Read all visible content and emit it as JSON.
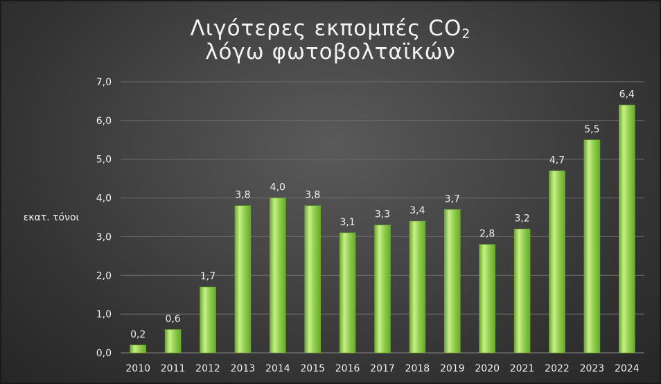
{
  "chart_data": {
    "type": "bar",
    "title": {
      "line1_main": "Λιγότερες εκπομπές CO",
      "line1_sub": "2",
      "line2": "λόγω φωτοβολταϊκών"
    },
    "ylabel": "εκατ. τόνοι",
    "xlabel": "",
    "ylim": [
      0,
      7
    ],
    "y_ticks": [
      0,
      1,
      2,
      3,
      4,
      5,
      6,
      7
    ],
    "y_tick_labels": [
      "0,0",
      "1,0",
      "2,0",
      "3,0",
      "4,0",
      "5,0",
      "6,0",
      "7,0"
    ],
    "grid": true,
    "categories": [
      "2010",
      "2011",
      "2012",
      "2013",
      "2014",
      "2015",
      "2016",
      "2017",
      "2018",
      "2019",
      "2020",
      "2021",
      "2022",
      "2023",
      "2024"
    ],
    "values": [
      0.2,
      0.6,
      1.7,
      3.8,
      4.0,
      3.8,
      3.1,
      3.3,
      3.4,
      3.7,
      2.8,
      3.2,
      4.7,
      5.5,
      6.4
    ],
    "value_labels": [
      "0,2",
      "0,6",
      "1,7",
      "3,8",
      "4,0",
      "3,8",
      "3,1",
      "3,3",
      "3,4",
      "3,7",
      "2,8",
      "3,2",
      "4,7",
      "5,5",
      "6,4"
    ],
    "colors": {
      "bar_light": "#c8f088",
      "bar_mid": "#92d050",
      "bar_dark": "#6aa82e",
      "text": "#f0f0f0",
      "gridline": "#6e6e6e"
    }
  }
}
